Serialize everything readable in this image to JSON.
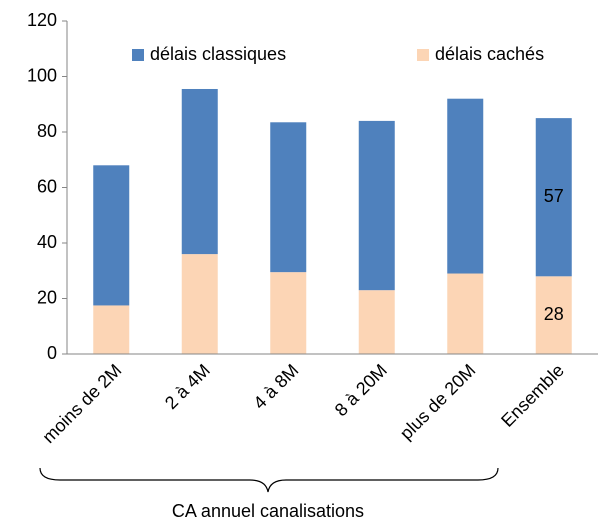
{
  "chart_data": {
    "type": "stacked_bar",
    "categories": [
      "moins de 2M",
      "2 à 4M",
      "4 à 8M",
      "8 à 20M",
      "plus de 20M",
      "Ensemble"
    ],
    "series": [
      {
        "name": "délais cachés",
        "color": "#fcd5b5",
        "values": [
          17.5,
          36,
          29.5,
          23,
          29,
          28
        ]
      },
      {
        "name": "délais classiques",
        "color": "#4f81bd",
        "values": [
          50.5,
          59.5,
          54,
          61,
          63,
          57
        ]
      }
    ],
    "x_label": "CA annuel canalisations",
    "ylim": [
      0,
      120
    ],
    "yticks": [
      0,
      20,
      40,
      60,
      80,
      100,
      120
    ],
    "grid": false,
    "legend": "top",
    "data_label_index": 5
  }
}
